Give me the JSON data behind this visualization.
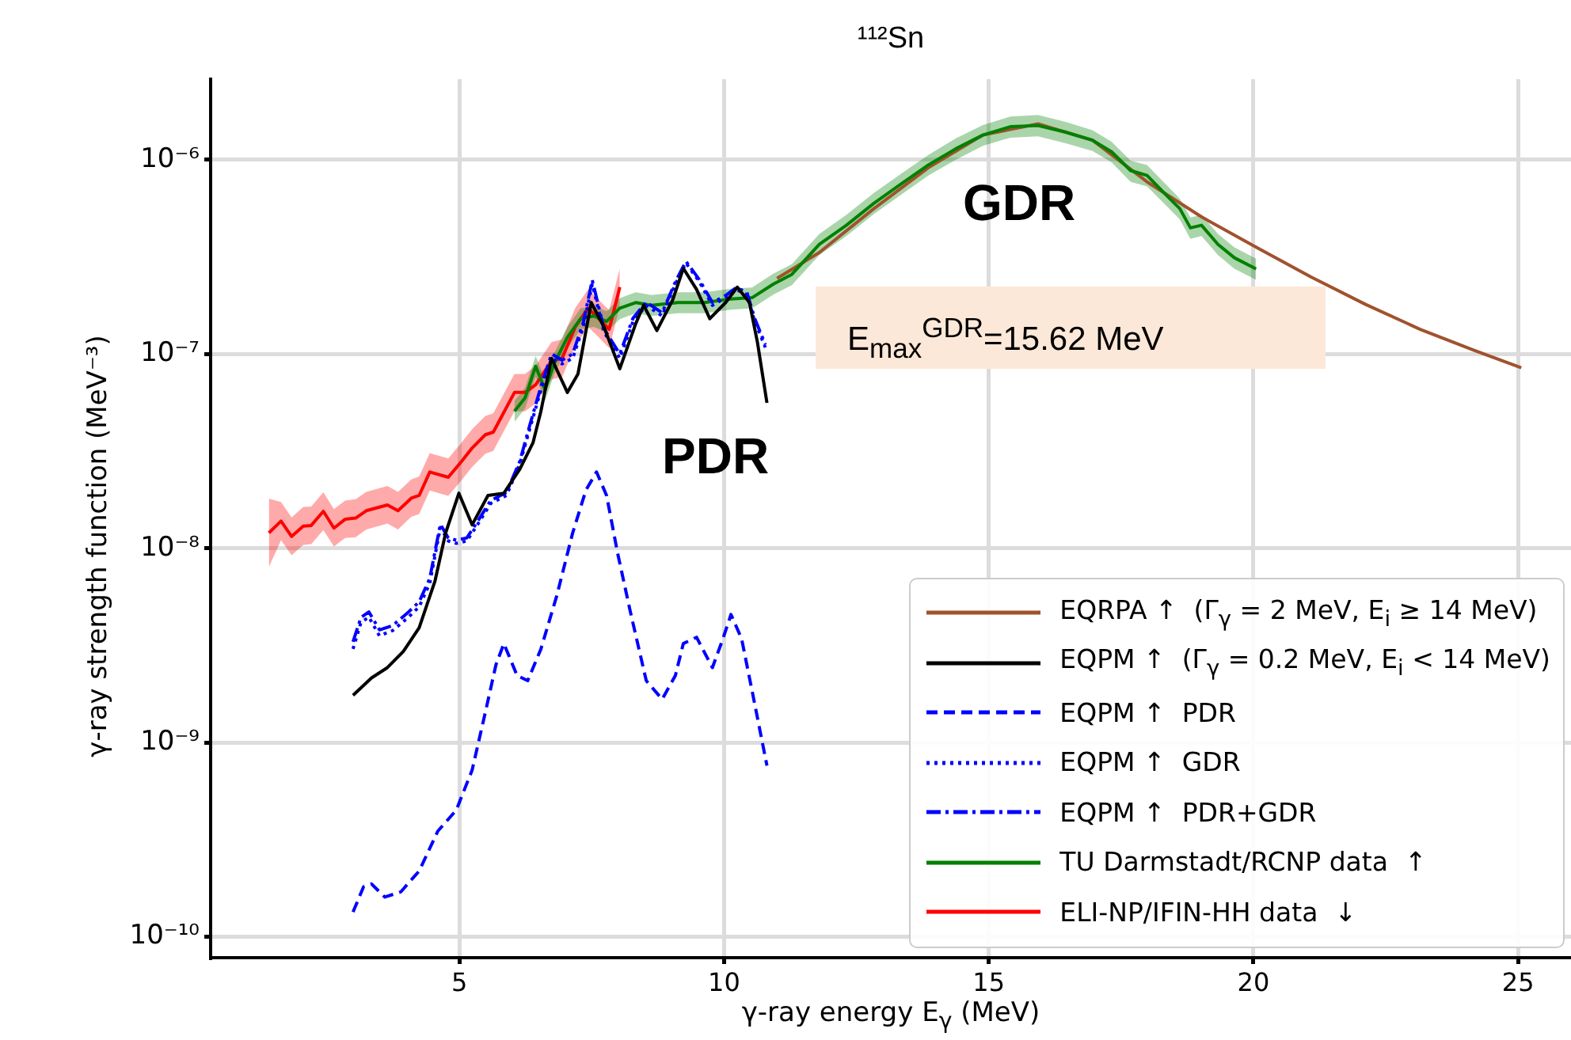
{
  "chart_data": {
    "type": "line",
    "title": "¹¹²Sn",
    "xlabel": "γ-ray energy E$_{γ}$ (MeV)",
    "ylabel": "γ-ray strength function (MeV⁻³)",
    "xlim": [
      0.3,
      26
    ],
    "xticks": [
      5,
      10,
      15,
      20,
      25
    ],
    "log": "y",
    "ylim": [
      7.8e-11,
      2.6e-06
    ],
    "yticks": [
      {
        "value": 1e-10,
        "label": "10⁻¹⁰"
      },
      {
        "value": 1e-09,
        "label": "10⁻⁹"
      },
      {
        "value": 1e-08,
        "label": "10⁻⁸"
      },
      {
        "value": 1e-07,
        "label": "10⁻⁷"
      },
      {
        "value": 1e-06,
        "label": "10⁻⁶"
      }
    ],
    "grid": true,
    "legend": "bottom right",
    "marker": "none",
    "annotations": [
      "GDR",
      "PDR",
      "E$_{max}$$^{GDR}$=15.62 MeV"
    ],
    "series": [
      {
        "name": "EQRPA ↑  (Γ$_{γ}$ = 2 MeV, E$_{i}$ ≥ 14 MeV)",
        "color": "#a0522d",
        "line_style": "solid",
        "x": [
          11.0,
          11.8,
          12.83,
          13.86,
          14.89,
          15.93,
          16.96,
          17.99,
          19.02,
          20.05,
          21.09,
          22.12,
          23.15,
          24.19,
          25.06
        ],
        "values": [
          2.45e-07,
          3.33e-07,
          5.6e-07,
          9.1e-07,
          1.34e-06,
          1.53e-06,
          1.26e-06,
          7.7e-07,
          5.08e-07,
          3.55e-07,
          2.49e-07,
          1.8e-07,
          1.34e-07,
          1.04e-07,
          8.5e-08
        ]
      },
      {
        "name": "EQPM ↑  (Γ$_{γ}$ = 0.2 MeV, E$_{i}$ < 14 MeV)",
        "color": "#000000",
        "line_style": "solid",
        "x": [
          2.99,
          3.34,
          3.64,
          3.94,
          4.24,
          4.54,
          4.74,
          4.99,
          5.24,
          5.54,
          5.84,
          6.14,
          6.39,
          6.54,
          6.74,
          7.04,
          7.24,
          7.49,
          7.73,
          8.03,
          8.33,
          8.48,
          8.73,
          9.03,
          9.23,
          9.48,
          9.73,
          10.03,
          10.25,
          10.48,
          10.63,
          10.81
        ],
        "values": [
          1.75e-09,
          2.15e-09,
          2.43e-09,
          2.94e-09,
          3.9e-09,
          6.8e-09,
          1.2e-08,
          1.92e-08,
          1.32e-08,
          1.87e-08,
          1.92e-08,
          2.55e-08,
          3.49e-08,
          5.08e-08,
          9.5e-08,
          6.34e-08,
          7.9e-08,
          1.84e-07,
          1.38e-07,
          8.4e-08,
          1.43e-07,
          1.78e-07,
          1.32e-07,
          1.9e-07,
          2.76e-07,
          2.15e-07,
          1.52e-07,
          1.84e-07,
          2.21e-07,
          1.84e-07,
          1.15e-07,
          5.6e-08
        ]
      },
      {
        "name": "EQPM ↑  PDR",
        "color": "#0000ff",
        "line_style": "dashed",
        "x": [
          2.99,
          3.19,
          3.34,
          3.59,
          3.89,
          4.24,
          4.59,
          4.94,
          5.24,
          5.49,
          5.69,
          5.84,
          6.09,
          6.29,
          6.54,
          6.84,
          7.14,
          7.39,
          7.59,
          7.78,
          7.99,
          8.23,
          8.53,
          8.83,
          9.08,
          9.23,
          9.48,
          9.78,
          9.98,
          10.13,
          10.33,
          10.53,
          10.81
        ],
        "values": [
          1.34e-10,
          1.81e-10,
          1.87e-10,
          1.6e-10,
          1.7e-10,
          2.18e-10,
          3.49e-10,
          4.48e-10,
          7.2e-10,
          1.43e-09,
          2.51e-09,
          3.23e-09,
          2.21e-09,
          2.08e-09,
          3.03e-09,
          5.7e-09,
          1.2e-08,
          1.99e-08,
          2.47e-08,
          1.87e-08,
          9.4e-09,
          4.7e-09,
          2.08e-09,
          1.67e-09,
          2.21e-09,
          3.23e-09,
          3.48e-09,
          2.43e-09,
          3.43e-09,
          4.56e-09,
          3.43e-09,
          1.84e-09,
          7.6e-10
        ]
      },
      {
        "name": "EQPM ↑  GDR",
        "color": "#0000ff",
        "line_style": "dotted",
        "x": [
          2.99,
          3.14,
          3.29,
          3.49,
          3.74,
          4.04,
          4.24,
          4.44,
          4.64,
          4.79,
          4.94,
          5.14,
          5.34,
          5.59,
          5.89,
          6.14,
          6.34,
          6.54,
          6.74,
          6.94,
          7.14,
          7.34,
          7.51,
          7.73,
          8.03,
          8.28,
          8.53,
          8.83,
          9.08,
          9.28,
          9.53,
          9.78,
          10.03,
          10.23,
          10.43,
          10.58,
          10.78
        ],
        "values": [
          3.03e-09,
          4.15e-09,
          4.42e-09,
          3.54e-09,
          3.77e-09,
          4.42e-09,
          5e-09,
          6.6e-09,
          1.28e-08,
          1.09e-08,
          1.06e-08,
          1.09e-08,
          1.32e-08,
          1.7e-08,
          1.87e-08,
          2.72e-08,
          4.21e-08,
          6.53e-08,
          9.5e-08,
          8.9e-08,
          9.5e-08,
          1.38e-07,
          2.29e-07,
          1.3e-07,
          9.5e-08,
          1.47e-07,
          1.78e-07,
          1.57e-07,
          2.29e-07,
          2.94e-07,
          2.36e-07,
          1.78e-07,
          1.95e-07,
          2.15e-07,
          2.02e-07,
          1.47e-07,
          1.08e-07
        ]
      },
      {
        "name": "EQPM ↑  PDR+GDR",
        "color": "#0000ff",
        "line_style": "dashdot",
        "x": [
          2.99,
          3.14,
          3.29,
          3.49,
          3.74,
          4.04,
          4.24,
          4.44,
          4.64,
          4.79,
          4.94,
          5.14,
          5.34,
          5.59,
          5.89,
          6.14,
          6.34,
          6.54,
          6.74,
          6.94,
          7.14,
          7.34,
          7.51,
          7.73,
          8.03,
          8.28,
          8.53,
          8.83,
          9.08,
          9.28,
          9.53,
          9.78,
          10.03,
          10.23,
          10.43,
          10.58,
          10.78
        ],
        "values": [
          3.3e-09,
          4.4e-09,
          4.7e-09,
          3.8e-09,
          4e-09,
          4.7e-09,
          5.3e-09,
          7e-09,
          1.33e-08,
          1.13e-08,
          1.1e-08,
          1.13e-08,
          1.37e-08,
          1.76e-08,
          1.94e-08,
          2.8e-08,
          4.4e-08,
          6.8e-08,
          1e-07,
          9.3e-08,
          1e-07,
          1.45e-07,
          2.4e-07,
          1.35e-07,
          1e-07,
          1.53e-07,
          1.85e-07,
          1.63e-07,
          2.35e-07,
          3e-07,
          2.42e-07,
          1.84e-07,
          2e-07,
          2.2e-07,
          2.08e-07,
          1.52e-07,
          1.12e-07
        ]
      },
      {
        "name": "TU Darmstadt/RCNP data  ↑",
        "color": "#008000",
        "line_style": "solid",
        "x": [
          6.04,
          6.24,
          6.44,
          6.62,
          6.79,
          7.04,
          7.29,
          7.54,
          7.78,
          8.03,
          8.33,
          8.63,
          9.13,
          9.63,
          10.13,
          10.53,
          10.93,
          11.28,
          11.8,
          12.31,
          12.83,
          13.34,
          13.86,
          14.38,
          14.89,
          15.41,
          15.93,
          16.44,
          16.96,
          17.32,
          17.68,
          17.99,
          18.3,
          18.61,
          18.81,
          19.02,
          19.33,
          19.64,
          20.05
        ],
        "values": [
          5.08e-08,
          5.94e-08,
          8.65e-08,
          6.53e-08,
          8.93e-08,
          1.22e-07,
          1.52e-07,
          1.57e-07,
          1.47e-07,
          1.72e-07,
          1.84e-07,
          1.78e-07,
          1.84e-07,
          1.84e-07,
          1.92e-07,
          1.95e-07,
          2.29e-07,
          2.57e-07,
          3.67e-07,
          4.6e-07,
          5.97e-07,
          7.49e-07,
          9.4e-07,
          1.14e-06,
          1.34e-06,
          1.48e-06,
          1.5e-06,
          1.39e-06,
          1.26e-06,
          1.1e-06,
          8.8e-07,
          8.3e-07,
          6.8e-07,
          5.6e-07,
          4.46e-07,
          4.6e-07,
          3.67e-07,
          3.13e-07,
          2.74e-07
        ],
        "lower": [
          4.47e-08,
          5.23e-08,
          7.61e-08,
          5.75e-08,
          7.86e-08,
          1.07e-07,
          1.34e-07,
          1.38e-07,
          1.29e-07,
          1.51e-07,
          1.62e-07,
          1.57e-07,
          1.62e-07,
          1.62e-07,
          1.69e-07,
          1.72e-07,
          2.02e-07,
          2.26e-07,
          3.23e-07,
          4.05e-07,
          5.25e-07,
          6.59e-07,
          8.3e-07,
          1e-06,
          1.18e-06,
          1.3e-06,
          1.32e-06,
          1.22e-06,
          1.11e-06,
          9.7e-07,
          7.7e-07,
          7.3e-07,
          6e-07,
          4.93e-07,
          3.92e-07,
          4.05e-07,
          3.23e-07,
          2.75e-07,
          2.41e-07
        ],
        "upper": [
          5.74e-08,
          6.71e-08,
          9.77e-08,
          7.38e-08,
          1.01e-07,
          1.38e-07,
          1.72e-07,
          1.77e-07,
          1.66e-07,
          1.94e-07,
          2.08e-07,
          2.01e-07,
          2.08e-07,
          2.08e-07,
          2.17e-07,
          2.2e-07,
          2.59e-07,
          2.9e-07,
          4.15e-07,
          5.2e-07,
          6.75e-07,
          8.46e-07,
          1.06e-06,
          1.29e-06,
          1.51e-06,
          1.67e-06,
          1.7e-06,
          1.57e-06,
          1.42e-06,
          1.24e-06,
          9.9e-07,
          9.4e-07,
          7.7e-07,
          6.3e-07,
          5.04e-07,
          5.2e-07,
          4.15e-07,
          3.54e-07,
          3.1e-07
        ]
      },
      {
        "name": "ELI-NP/IFIN-HH data  ↓",
        "color": "#ff0000",
        "line_style": "solid",
        "x": [
          1.4,
          1.63,
          1.83,
          2.05,
          2.2,
          2.43,
          2.63,
          2.84,
          3.04,
          3.24,
          3.64,
          3.84,
          4.09,
          4.24,
          4.44,
          4.79,
          5.04,
          5.24,
          5.49,
          5.64,
          6.04,
          6.24,
          6.44,
          6.74,
          6.94,
          7.19,
          7.43,
          7.63,
          7.83,
          8.03
        ],
        "values": [
          1.2e-08,
          1.38e-08,
          1.15e-08,
          1.3e-08,
          1.31e-08,
          1.55e-08,
          1.27e-08,
          1.41e-08,
          1.43e-08,
          1.56e-08,
          1.67e-08,
          1.56e-08,
          1.81e-08,
          1.87e-08,
          2.47e-08,
          2.32e-08,
          2.8e-08,
          3.28e-08,
          3.84e-08,
          3.96e-08,
          6.34e-08,
          6.34e-08,
          6.95e-08,
          9.2e-08,
          9.5e-08,
          1.38e-07,
          1.72e-07,
          1.52e-07,
          1.34e-07,
          2.21e-07
        ],
        "lower": [
          8e-09,
          1.1e-08,
          9.2e-09,
          1.04e-08,
          1.05e-08,
          1.24e-08,
          1.02e-08,
          1.13e-08,
          1.14e-08,
          1.25e-08,
          1.34e-08,
          1.25e-08,
          1.45e-08,
          1.5e-08,
          1.98e-08,
          1.86e-08,
          2.24e-08,
          2.62e-08,
          3.07e-08,
          3.17e-08,
          5.07e-08,
          5.07e-08,
          5.56e-08,
          7.4e-08,
          7.6e-08,
          1.1e-07,
          1.38e-07,
          1.22e-07,
          1.07e-07,
          1.77e-07
        ],
        "upper": [
          1.8e-08,
          1.73e-08,
          1.44e-08,
          1.63e-08,
          1.64e-08,
          1.94e-08,
          1.59e-08,
          1.76e-08,
          1.79e-08,
          1.95e-08,
          2.09e-08,
          1.95e-08,
          2.26e-08,
          2.34e-08,
          3.09e-08,
          2.9e-08,
          3.5e-08,
          4.1e-08,
          4.8e-08,
          4.95e-08,
          7.9e-08,
          7.9e-08,
          8.7e-08,
          1.15e-07,
          1.19e-07,
          1.73e-07,
          2.15e-07,
          1.9e-07,
          1.68e-07,
          2.76e-07
        ]
      }
    ]
  }
}
